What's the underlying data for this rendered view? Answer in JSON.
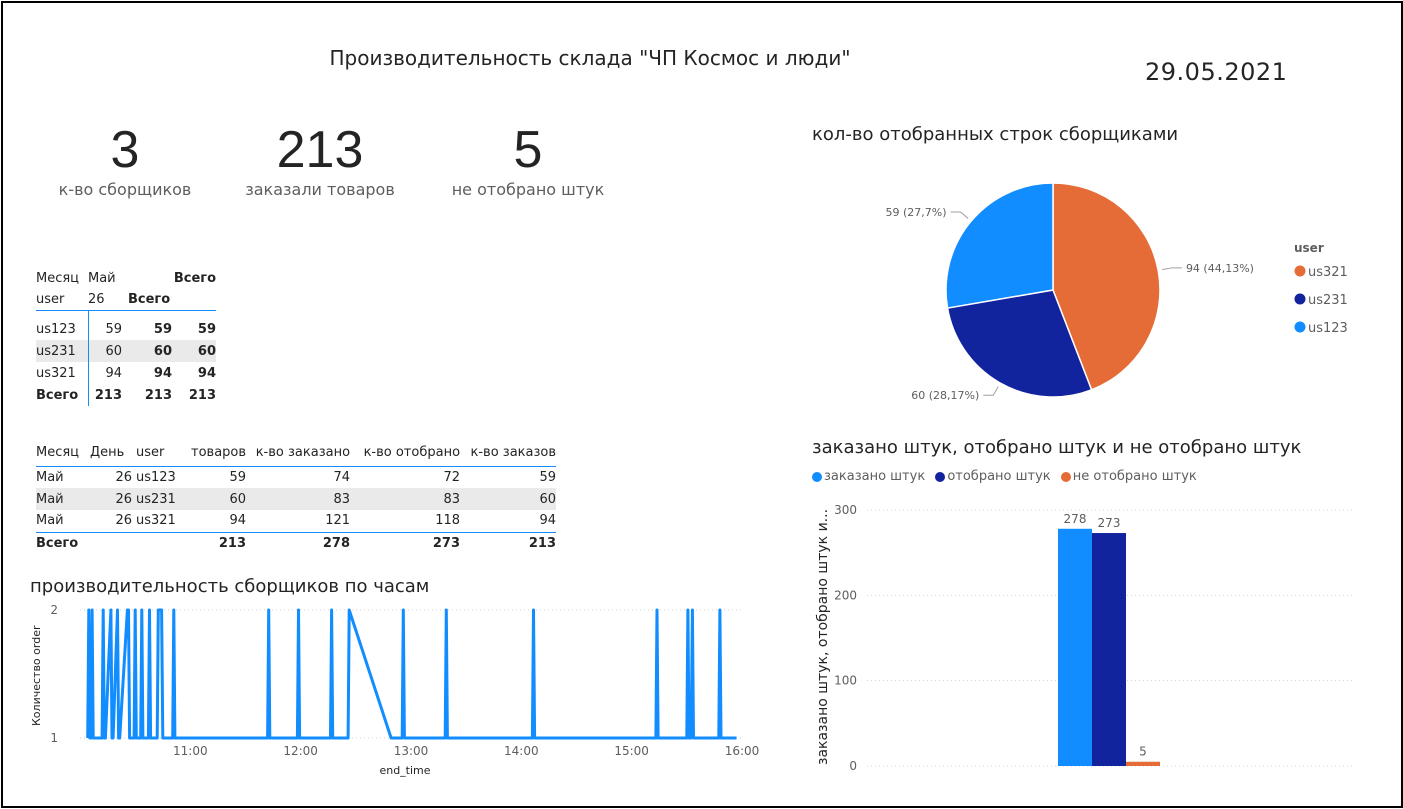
{
  "header": {
    "title": "Производительность склада \"ЧП Космос и люди\"",
    "date": "29.05.2021"
  },
  "kpis": [
    {
      "value": "3",
      "label": "к-во сборщиков"
    },
    {
      "value": "213",
      "label": "заказали товаров"
    },
    {
      "value": "5",
      "label": "не отобрано штук"
    }
  ],
  "matrix": {
    "h1": [
      "Месяц",
      "Май",
      "",
      "Всего"
    ],
    "h2": [
      "user",
      "26",
      "Всего",
      ""
    ],
    "rows": [
      [
        "us123",
        "59",
        "59",
        "59"
      ],
      [
        "us231",
        "60",
        "60",
        "60"
      ],
      [
        "us321",
        "94",
        "94",
        "94"
      ]
    ],
    "total": [
      "Всего",
      "213",
      "213",
      "213"
    ]
  },
  "detail_table": {
    "headers": [
      "Месяц",
      "День",
      "user",
      "товаров",
      "к-во заказано",
      "к-во отобрано",
      "к-во заказов"
    ],
    "rows": [
      [
        "Май",
        "26",
        "us123",
        "59",
        "74",
        "72",
        "59"
      ],
      [
        "Май",
        "26",
        "us231",
        "60",
        "83",
        "83",
        "60"
      ],
      [
        "Май",
        "26",
        "us321",
        "94",
        "121",
        "118",
        "94"
      ]
    ],
    "total": [
      "Всего",
      "",
      "",
      "213",
      "278",
      "273",
      "213"
    ]
  },
  "colors": {
    "us321": "#e66c37",
    "us231": "#12239e",
    "us123": "#118dff",
    "zakazano": "#118dff",
    "otobrano": "#12239e",
    "ne_otobrano": "#e66c37"
  },
  "chart_data": [
    {
      "type": "pie",
      "title": "кол-во отобранных строк сборщиками",
      "legend_title": "user",
      "legend_position": "right",
      "categories": [
        "us321",
        "us231",
        "us123"
      ],
      "values": [
        94,
        60,
        59
      ],
      "labels": [
        "94 (44,13%)",
        "60 (28,17%)",
        "59 (27,7%)"
      ]
    },
    {
      "type": "bar",
      "title": "заказано штук, отобрано штук и не отобрано штук",
      "ylabel": "заказано штук, отобрано штук и...",
      "legend_position": "top-left",
      "ylim": [
        0,
        300
      ],
      "yticks": [
        0,
        100,
        200,
        300
      ],
      "series": [
        {
          "name": "заказано штук",
          "values": [
            278
          ]
        },
        {
          "name": "отобрано штук",
          "values": [
            273
          ]
        },
        {
          "name": "не отобрано штук",
          "values": [
            5
          ]
        }
      ]
    },
    {
      "type": "line",
      "title": "производительность сборщиков по часам",
      "xlabel": "end_time",
      "ylabel": "Количество order",
      "ylim": [
        1,
        2
      ],
      "yticks": [
        1,
        2
      ],
      "xticks": [
        "11:00",
        "12:00",
        "13:00",
        "14:00",
        "15:00",
        "16:00"
      ],
      "xrange_hours": [
        10.0,
        16.0
      ],
      "points_x": [
        10.07,
        10.08,
        10.09,
        10.1,
        10.11,
        10.12,
        10.2,
        10.21,
        10.22,
        10.23,
        10.28,
        10.29,
        10.3,
        10.34,
        10.35,
        10.36,
        10.43,
        10.44,
        10.45,
        10.49,
        10.5,
        10.51,
        10.55,
        10.56,
        10.57,
        10.62,
        10.63,
        10.64,
        10.7,
        10.71,
        10.72,
        10.73,
        10.74,
        10.75,
        10.84,
        10.85,
        10.86,
        11.7,
        11.71,
        11.72,
        11.97,
        11.98,
        11.99,
        12.27,
        12.28,
        12.29,
        12.43,
        12.44,
        12.82,
        12.83,
        12.92,
        12.93,
        12.94,
        13.31,
        13.32,
        13.33,
        14.1,
        14.11,
        14.12,
        15.22,
        15.23,
        15.24,
        15.5,
        15.51,
        15.52,
        15.54,
        15.55,
        15.56,
        15.79,
        15.8,
        15.81,
        15.95
      ],
      "points_y": [
        1,
        2,
        1,
        1,
        2,
        1,
        1,
        2,
        1,
        1,
        2,
        1,
        1,
        2,
        1,
        1,
        2,
        2,
        1,
        1,
        2,
        1,
        1,
        2,
        1,
        1,
        2,
        1,
        1,
        2,
        2,
        2,
        2,
        1,
        1,
        2,
        1,
        1,
        2,
        1,
        1,
        2,
        1,
        1,
        2,
        1,
        1,
        2,
        1,
        1,
        1,
        2,
        1,
        1,
        2,
        1,
        1,
        2,
        1,
        1,
        2,
        1,
        1,
        2,
        1,
        1,
        2,
        1,
        1,
        2,
        1,
        1
      ]
    }
  ]
}
